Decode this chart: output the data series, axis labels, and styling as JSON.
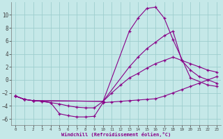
{
  "background_color": "#c5e8e8",
  "grid_color": "#9ecece",
  "line_color": "#880088",
  "xlabel": "Windchill (Refroidissement éolien,°C)",
  "xlim": [
    -0.5,
    23.5
  ],
  "ylim": [
    -7,
    12
  ],
  "yticks": [
    -6,
    -4,
    -2,
    0,
    2,
    4,
    6,
    8,
    10
  ],
  "xticks": [
    0,
    1,
    2,
    3,
    4,
    5,
    6,
    7,
    8,
    9,
    10,
    11,
    12,
    13,
    14,
    15,
    16,
    17,
    18,
    19,
    20,
    21,
    22,
    23
  ],
  "lines": [
    {
      "x": [
        0,
        1,
        2,
        10,
        13,
        14,
        15,
        16,
        17,
        18,
        20,
        22,
        23
      ],
      "y": [
        -2.5,
        -3.0,
        -3.2,
        -3.3,
        7.5,
        9.5,
        11.0,
        11.2,
        9.5,
        6.2,
        0.3,
        -0.8,
        -1.0
      ]
    },
    {
      "x": [
        0,
        1,
        2,
        10,
        13,
        14,
        15,
        16,
        17,
        18,
        19,
        20,
        21,
        22,
        23
      ],
      "y": [
        -2.5,
        -3.0,
        -3.2,
        -3.3,
        2.0,
        3.5,
        4.8,
        5.8,
        6.8,
        7.5,
        3.0,
        1.5,
        0.5,
        0.0,
        -0.5
      ]
    },
    {
      "x": [
        0,
        1,
        2,
        3,
        4,
        5,
        6,
        7,
        8,
        9,
        10,
        11,
        12,
        13,
        14,
        15,
        16,
        17,
        18,
        19,
        20,
        21,
        22,
        23
      ],
      "y": [
        -2.5,
        -3.0,
        -3.2,
        -3.3,
        -3.5,
        -3.7,
        -4.0,
        -4.2,
        -4.3,
        -4.3,
        -3.3,
        -2.0,
        -0.8,
        0.3,
        1.0,
        1.8,
        2.5,
        3.0,
        3.5,
        3.0,
        2.5,
        2.0,
        1.5,
        1.2
      ]
    },
    {
      "x": [
        0,
        1,
        2,
        3,
        4,
        5,
        6,
        7,
        8,
        9,
        10,
        11,
        12,
        13,
        14,
        15,
        16,
        17,
        18,
        19,
        20,
        21,
        22,
        23
      ],
      "y": [
        -2.5,
        -3.0,
        -3.2,
        -3.3,
        -3.5,
        -5.2,
        -5.5,
        -5.7,
        -5.7,
        -5.6,
        -3.5,
        -3.4,
        -3.3,
        -3.2,
        -3.1,
        -3.0,
        -2.9,
        -2.5,
        -2.0,
        -1.5,
        -1.0,
        -0.5,
        0.0,
        0.5
      ]
    }
  ]
}
